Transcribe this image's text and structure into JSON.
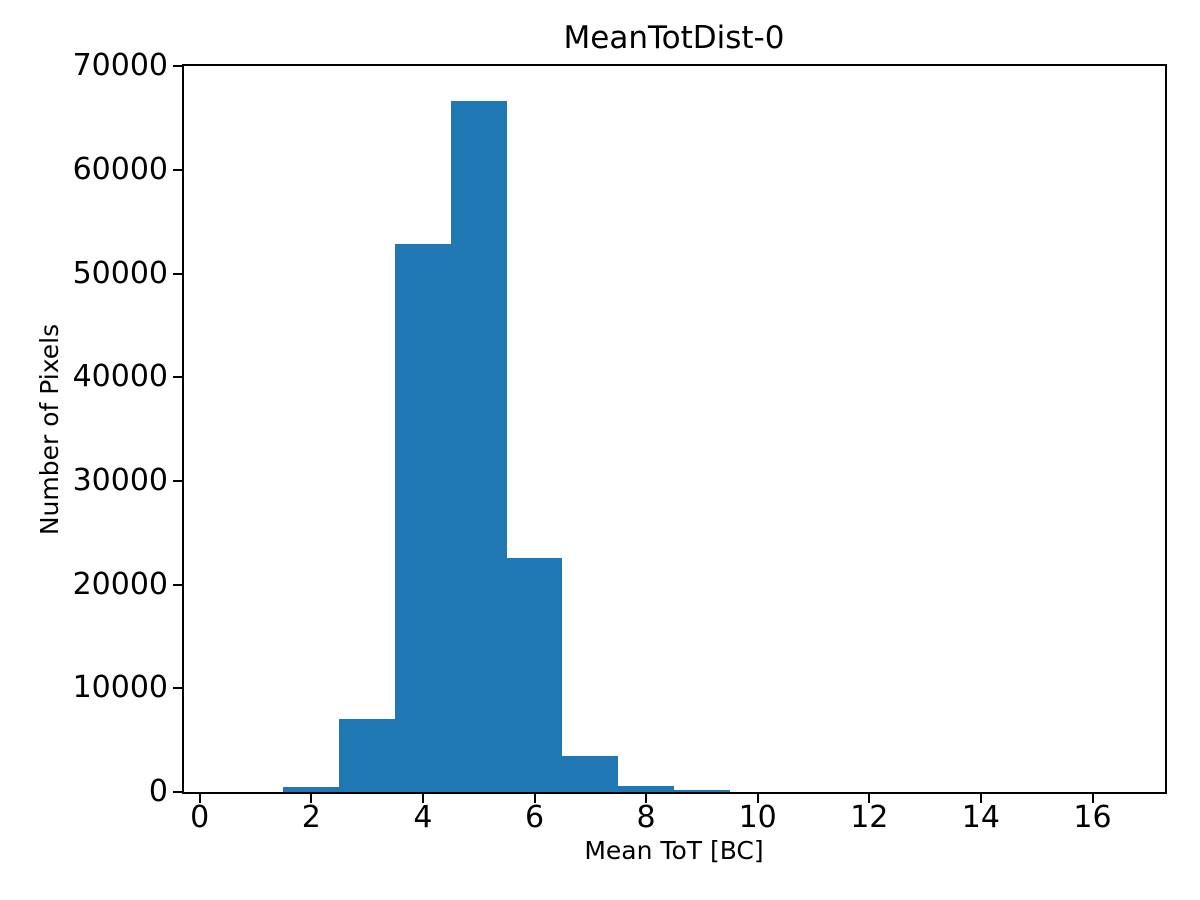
{
  "figure": {
    "background_color": "#ffffff",
    "axis_color": "#000000",
    "text_color": "#000000"
  },
  "chart_data": {
    "type": "bar",
    "subtype": "histogram",
    "title": "MeanTotDist-0",
    "xlabel": "Mean ToT [BC]",
    "ylabel": "Number of Pixels",
    "bar_color": "#1f77b4",
    "grid": false,
    "legend": null,
    "bin_edges": [
      0.5,
      1.5,
      2.5,
      3.5,
      4.5,
      5.5,
      6.5,
      7.5,
      8.5,
      9.5,
      10.5,
      11.5,
      12.5,
      13.5,
      14.5,
      15.5,
      16.5
    ],
    "counts": [
      0,
      450,
      7000,
      52900,
      66700,
      22600,
      3500,
      550,
      150,
      0,
      0,
      0,
      0,
      0,
      0,
      0
    ],
    "xlim": [
      -0.3,
      17.3
    ],
    "ylim": [
      0,
      70035
    ],
    "xticks": [
      0,
      2,
      4,
      6,
      8,
      10,
      12,
      14,
      16
    ],
    "yticks": [
      0,
      10000,
      20000,
      30000,
      40000,
      50000,
      60000,
      70000
    ]
  }
}
